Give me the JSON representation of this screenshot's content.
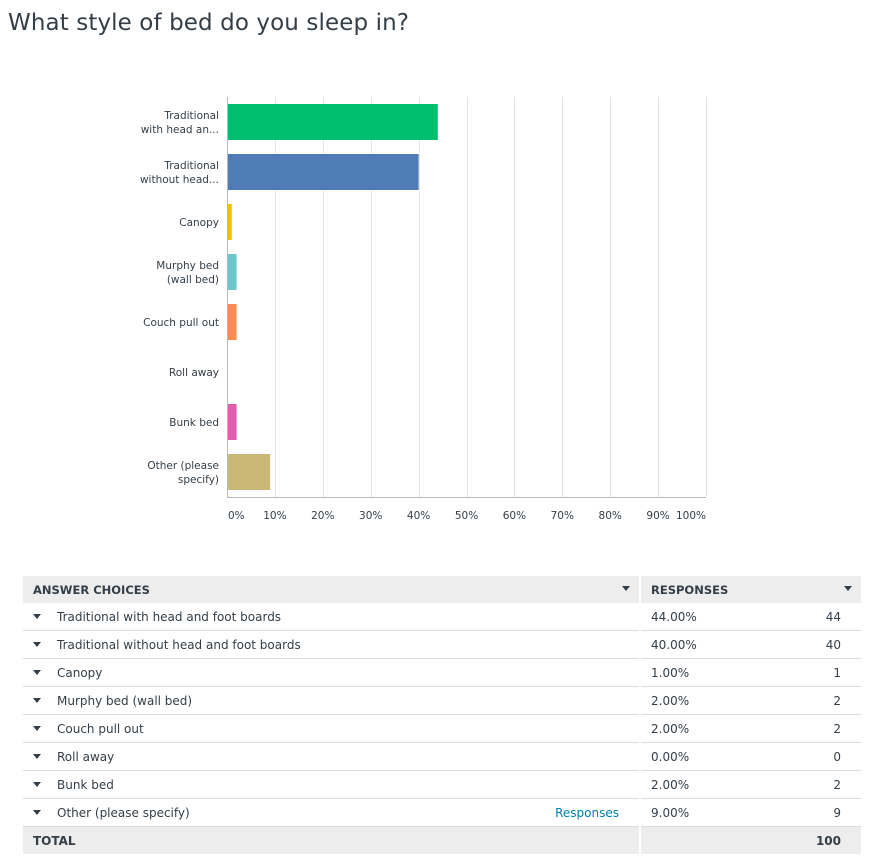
{
  "question": {
    "title": "What style of bed do you sleep in?"
  },
  "chart_data": {
    "type": "bar",
    "orientation": "horizontal",
    "categories": [
      [
        "Traditional",
        "with head an..."
      ],
      [
        "Traditional",
        "without head..."
      ],
      [
        "Canopy"
      ],
      [
        "Murphy bed",
        "(wall bed)"
      ],
      [
        "Couch pull out"
      ],
      [
        "Roll away"
      ],
      [
        "Bunk bed"
      ],
      [
        "Other (please",
        "specify)"
      ]
    ],
    "values": [
      44,
      40,
      1,
      2,
      2,
      0,
      2,
      9
    ],
    "colors": [
      "#00bf6f",
      "#507cb6",
      "#f9be00",
      "#6bc8cd",
      "#ff8b4f",
      "#7f7fff",
      "#e05caf",
      "#c9b877"
    ],
    "xticks": [
      "0%",
      "10%",
      "20%",
      "30%",
      "40%",
      "50%",
      "60%",
      "70%",
      "80%",
      "90%",
      "100%"
    ],
    "xlim": [
      0,
      100
    ],
    "grid": true
  },
  "table": {
    "headers": {
      "choices": "ANSWER CHOICES",
      "responses": "RESPONSES"
    },
    "rows": [
      {
        "label": "Traditional with head and foot boards",
        "percent": "44.00%",
        "count": "44"
      },
      {
        "label": "Traditional without head and foot boards",
        "percent": "40.00%",
        "count": "40"
      },
      {
        "label": "Canopy",
        "percent": "1.00%",
        "count": "1"
      },
      {
        "label": "Murphy bed (wall bed)",
        "percent": "2.00%",
        "count": "2"
      },
      {
        "label": "Couch pull out",
        "percent": "2.00%",
        "count": "2"
      },
      {
        "label": "Roll away",
        "percent": "0.00%",
        "count": "0"
      },
      {
        "label": "Bunk bed",
        "percent": "2.00%",
        "count": "2"
      },
      {
        "label": "Other (please specify)",
        "percent": "9.00%",
        "count": "9",
        "link": "Responses"
      }
    ],
    "total": {
      "label": "TOTAL",
      "count": "100"
    }
  }
}
